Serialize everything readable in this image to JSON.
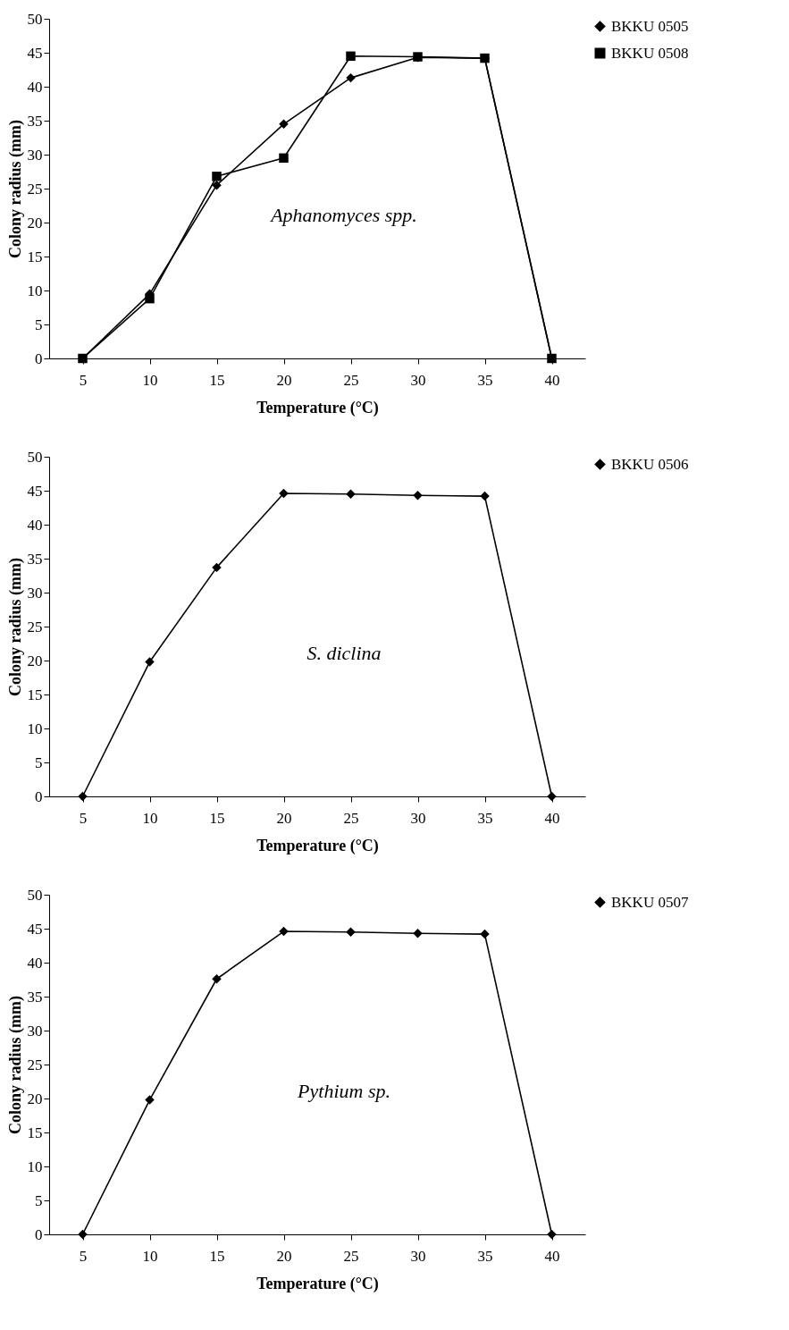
{
  "chart_data": [
    {
      "type": "line",
      "xlabel": "Temperature (°C)",
      "ylabel": "Colony radius (mm)",
      "categories": [
        "5",
        "10",
        "15",
        "20",
        "25",
        "30",
        "35",
        "40"
      ],
      "ylim": [
        0,
        50
      ],
      "yticks": [
        0,
        5,
        10,
        15,
        20,
        25,
        30,
        35,
        40,
        45,
        50
      ],
      "grid": false,
      "legend": "top right",
      "annotations": [
        "Aphanomyces spp."
      ],
      "series": [
        {
          "name": "BKKU 0505",
          "color": "#000000",
          "marker": "diamond",
          "values": [
            0,
            9.5,
            25.5,
            34.5,
            41.3,
            44.3,
            44.2,
            0
          ]
        },
        {
          "name": "BKKU 0508",
          "color": "#000000",
          "marker": "square",
          "values": [
            0,
            8.8,
            26.8,
            29.5,
            44.5,
            44.4,
            44.2,
            0
          ]
        }
      ]
    },
    {
      "type": "line",
      "xlabel": "Temperature (°C)",
      "ylabel": "Colony radius (mm)",
      "categories": [
        "5",
        "10",
        "15",
        "20",
        "25",
        "30",
        "35",
        "40"
      ],
      "ylim": [
        0,
        50
      ],
      "yticks": [
        0,
        5,
        10,
        15,
        20,
        25,
        30,
        35,
        40,
        45,
        50
      ],
      "grid": false,
      "legend": "top right",
      "annotations": [
        "S. diclina"
      ],
      "series": [
        {
          "name": "BKKU 0506",
          "color": "#000000",
          "marker": "diamond",
          "values": [
            0,
            19.8,
            33.7,
            44.6,
            44.5,
            44.3,
            44.2,
            0
          ]
        }
      ]
    },
    {
      "type": "line",
      "xlabel": "Temperature (°C)",
      "ylabel": "Colony radius (mm)",
      "categories": [
        "5",
        "10",
        "15",
        "20",
        "25",
        "30",
        "35",
        "40"
      ],
      "ylim": [
        0,
        50
      ],
      "yticks": [
        0,
        5,
        10,
        15,
        20,
        25,
        30,
        35,
        40,
        45,
        50
      ],
      "grid": false,
      "legend": "top right",
      "annotations": [
        "Pythium sp."
      ],
      "series": [
        {
          "name": "BKKU 0507",
          "color": "#000000",
          "marker": "diamond",
          "values": [
            0,
            19.8,
            37.6,
            44.6,
            44.5,
            44.3,
            44.2,
            0
          ]
        }
      ]
    }
  ]
}
